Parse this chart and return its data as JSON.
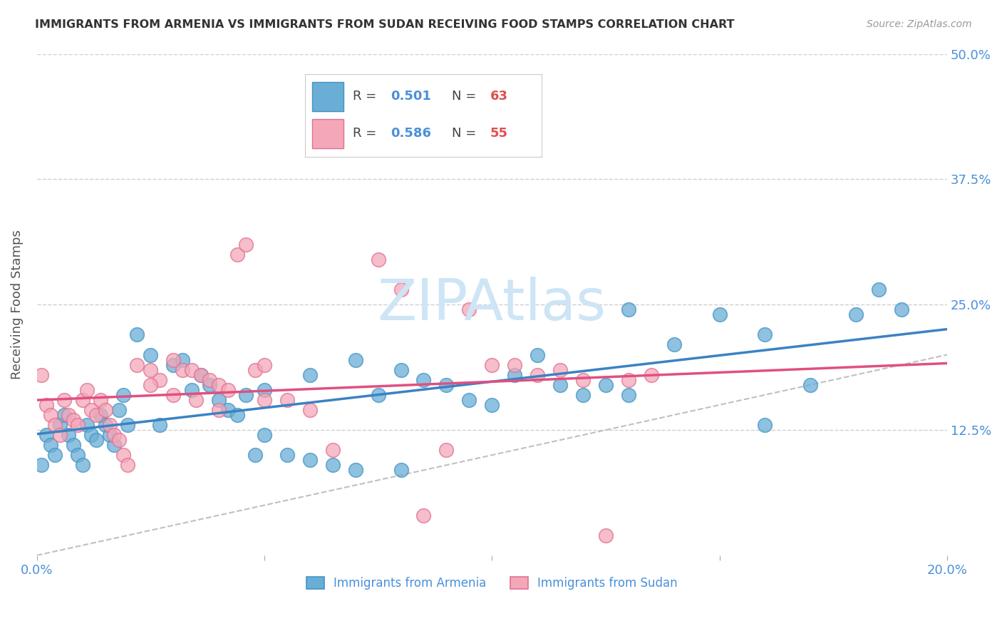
{
  "title": "IMMIGRANTS FROM ARMENIA VS IMMIGRANTS FROM SUDAN RECEIVING FOOD STAMPS CORRELATION CHART",
  "source": "Source: ZipAtlas.com",
  "ylabel": "Receiving Food Stamps",
  "xlim": [
    0.0,
    0.2
  ],
  "ylim": [
    0.0,
    0.5
  ],
  "xticks": [
    0.0,
    0.05,
    0.1,
    0.15,
    0.2
  ],
  "xticklabels": [
    "0.0%",
    "",
    "",
    "",
    "20.0%"
  ],
  "yticks": [
    0.0,
    0.125,
    0.25,
    0.375,
    0.5
  ],
  "yticklabels": [
    "",
    "12.5%",
    "25.0%",
    "37.5%",
    "50.0%"
  ],
  "armenia_R": 0.501,
  "armenia_N": 63,
  "sudan_R": 0.586,
  "sudan_N": 55,
  "armenia_color": "#6aaed6",
  "armenia_edge": "#4393c3",
  "sudan_color": "#f4a7b9",
  "sudan_edge": "#e07090",
  "armenia_line_color": "#3b82c4",
  "sudan_line_color": "#e05080",
  "diagonal_color": "#c0c0c0",
  "grid_color": "#d0d0d0",
  "axis_label_color": "#4a90d9",
  "title_color": "#333333",
  "watermark_color": "#cde5f5",
  "armenia_x": [
    0.001,
    0.002,
    0.003,
    0.004,
    0.005,
    0.006,
    0.007,
    0.008,
    0.009,
    0.01,
    0.011,
    0.012,
    0.013,
    0.014,
    0.015,
    0.016,
    0.017,
    0.018,
    0.019,
    0.02,
    0.022,
    0.025,
    0.027,
    0.03,
    0.032,
    0.034,
    0.036,
    0.038,
    0.04,
    0.042,
    0.044,
    0.046,
    0.048,
    0.05,
    0.055,
    0.06,
    0.065,
    0.07,
    0.075,
    0.08,
    0.085,
    0.09,
    0.095,
    0.1,
    0.105,
    0.11,
    0.115,
    0.12,
    0.125,
    0.13,
    0.14,
    0.15,
    0.16,
    0.17,
    0.18,
    0.19,
    0.05,
    0.06,
    0.07,
    0.08,
    0.13,
    0.16,
    0.185
  ],
  "armenia_y": [
    0.09,
    0.12,
    0.11,
    0.1,
    0.13,
    0.14,
    0.12,
    0.11,
    0.1,
    0.09,
    0.13,
    0.12,
    0.115,
    0.14,
    0.13,
    0.12,
    0.11,
    0.145,
    0.16,
    0.13,
    0.22,
    0.2,
    0.13,
    0.19,
    0.195,
    0.165,
    0.18,
    0.17,
    0.155,
    0.145,
    0.14,
    0.16,
    0.1,
    0.12,
    0.1,
    0.095,
    0.09,
    0.085,
    0.16,
    0.085,
    0.175,
    0.17,
    0.155,
    0.15,
    0.18,
    0.2,
    0.17,
    0.16,
    0.17,
    0.16,
    0.21,
    0.24,
    0.13,
    0.17,
    0.24,
    0.245,
    0.165,
    0.18,
    0.195,
    0.185,
    0.245,
    0.22,
    0.265
  ],
  "sudan_x": [
    0.001,
    0.002,
    0.003,
    0.004,
    0.005,
    0.006,
    0.007,
    0.008,
    0.009,
    0.01,
    0.011,
    0.012,
    0.013,
    0.014,
    0.015,
    0.016,
    0.017,
    0.018,
    0.019,
    0.02,
    0.022,
    0.025,
    0.027,
    0.03,
    0.032,
    0.034,
    0.036,
    0.038,
    0.04,
    0.042,
    0.044,
    0.046,
    0.048,
    0.05,
    0.055,
    0.06,
    0.065,
    0.075,
    0.08,
    0.085,
    0.09,
    0.095,
    0.1,
    0.105,
    0.11,
    0.115,
    0.12,
    0.125,
    0.13,
    0.135,
    0.025,
    0.03,
    0.035,
    0.04,
    0.05
  ],
  "sudan_y": [
    0.18,
    0.15,
    0.14,
    0.13,
    0.12,
    0.155,
    0.14,
    0.135,
    0.13,
    0.155,
    0.165,
    0.145,
    0.14,
    0.155,
    0.145,
    0.13,
    0.12,
    0.115,
    0.1,
    0.09,
    0.19,
    0.185,
    0.175,
    0.195,
    0.185,
    0.185,
    0.18,
    0.175,
    0.17,
    0.165,
    0.3,
    0.31,
    0.185,
    0.19,
    0.155,
    0.145,
    0.105,
    0.295,
    0.265,
    0.04,
    0.105,
    0.245,
    0.19,
    0.19,
    0.18,
    0.185,
    0.175,
    0.02,
    0.175,
    0.18,
    0.17,
    0.16,
    0.155,
    0.145,
    0.155
  ]
}
